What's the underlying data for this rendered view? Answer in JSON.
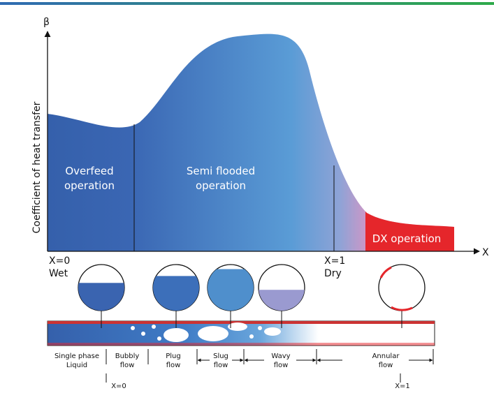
{
  "axes": {
    "y_symbol": "β",
    "x_symbol": "X",
    "y_title": "Coefficient of heat transfer"
  },
  "regions": [
    {
      "lines": [
        "Overfeed",
        "operation"
      ]
    },
    {
      "lines": [
        "Semi flooded",
        "operation"
      ]
    },
    {
      "lines": [
        "DX operation"
      ]
    }
  ],
  "markers": [
    {
      "label": "X=0",
      "sub": "Wet"
    },
    {
      "label": "X=1",
      "sub": "Dry"
    }
  ],
  "regimes": [
    {
      "lines": [
        "Single phase",
        "Liquid"
      ]
    },
    {
      "lines": [
        "Bubbly",
        "flow"
      ]
    },
    {
      "lines": [
        "Plug",
        "flow"
      ]
    },
    {
      "lines": [
        "Slug",
        "flow"
      ]
    },
    {
      "lines": [
        "Wavy",
        "flow"
      ]
    },
    {
      "lines": [
        "Annular",
        "flow"
      ]
    }
  ],
  "quality_marks": [
    "X=0",
    "X=1"
  ]
}
